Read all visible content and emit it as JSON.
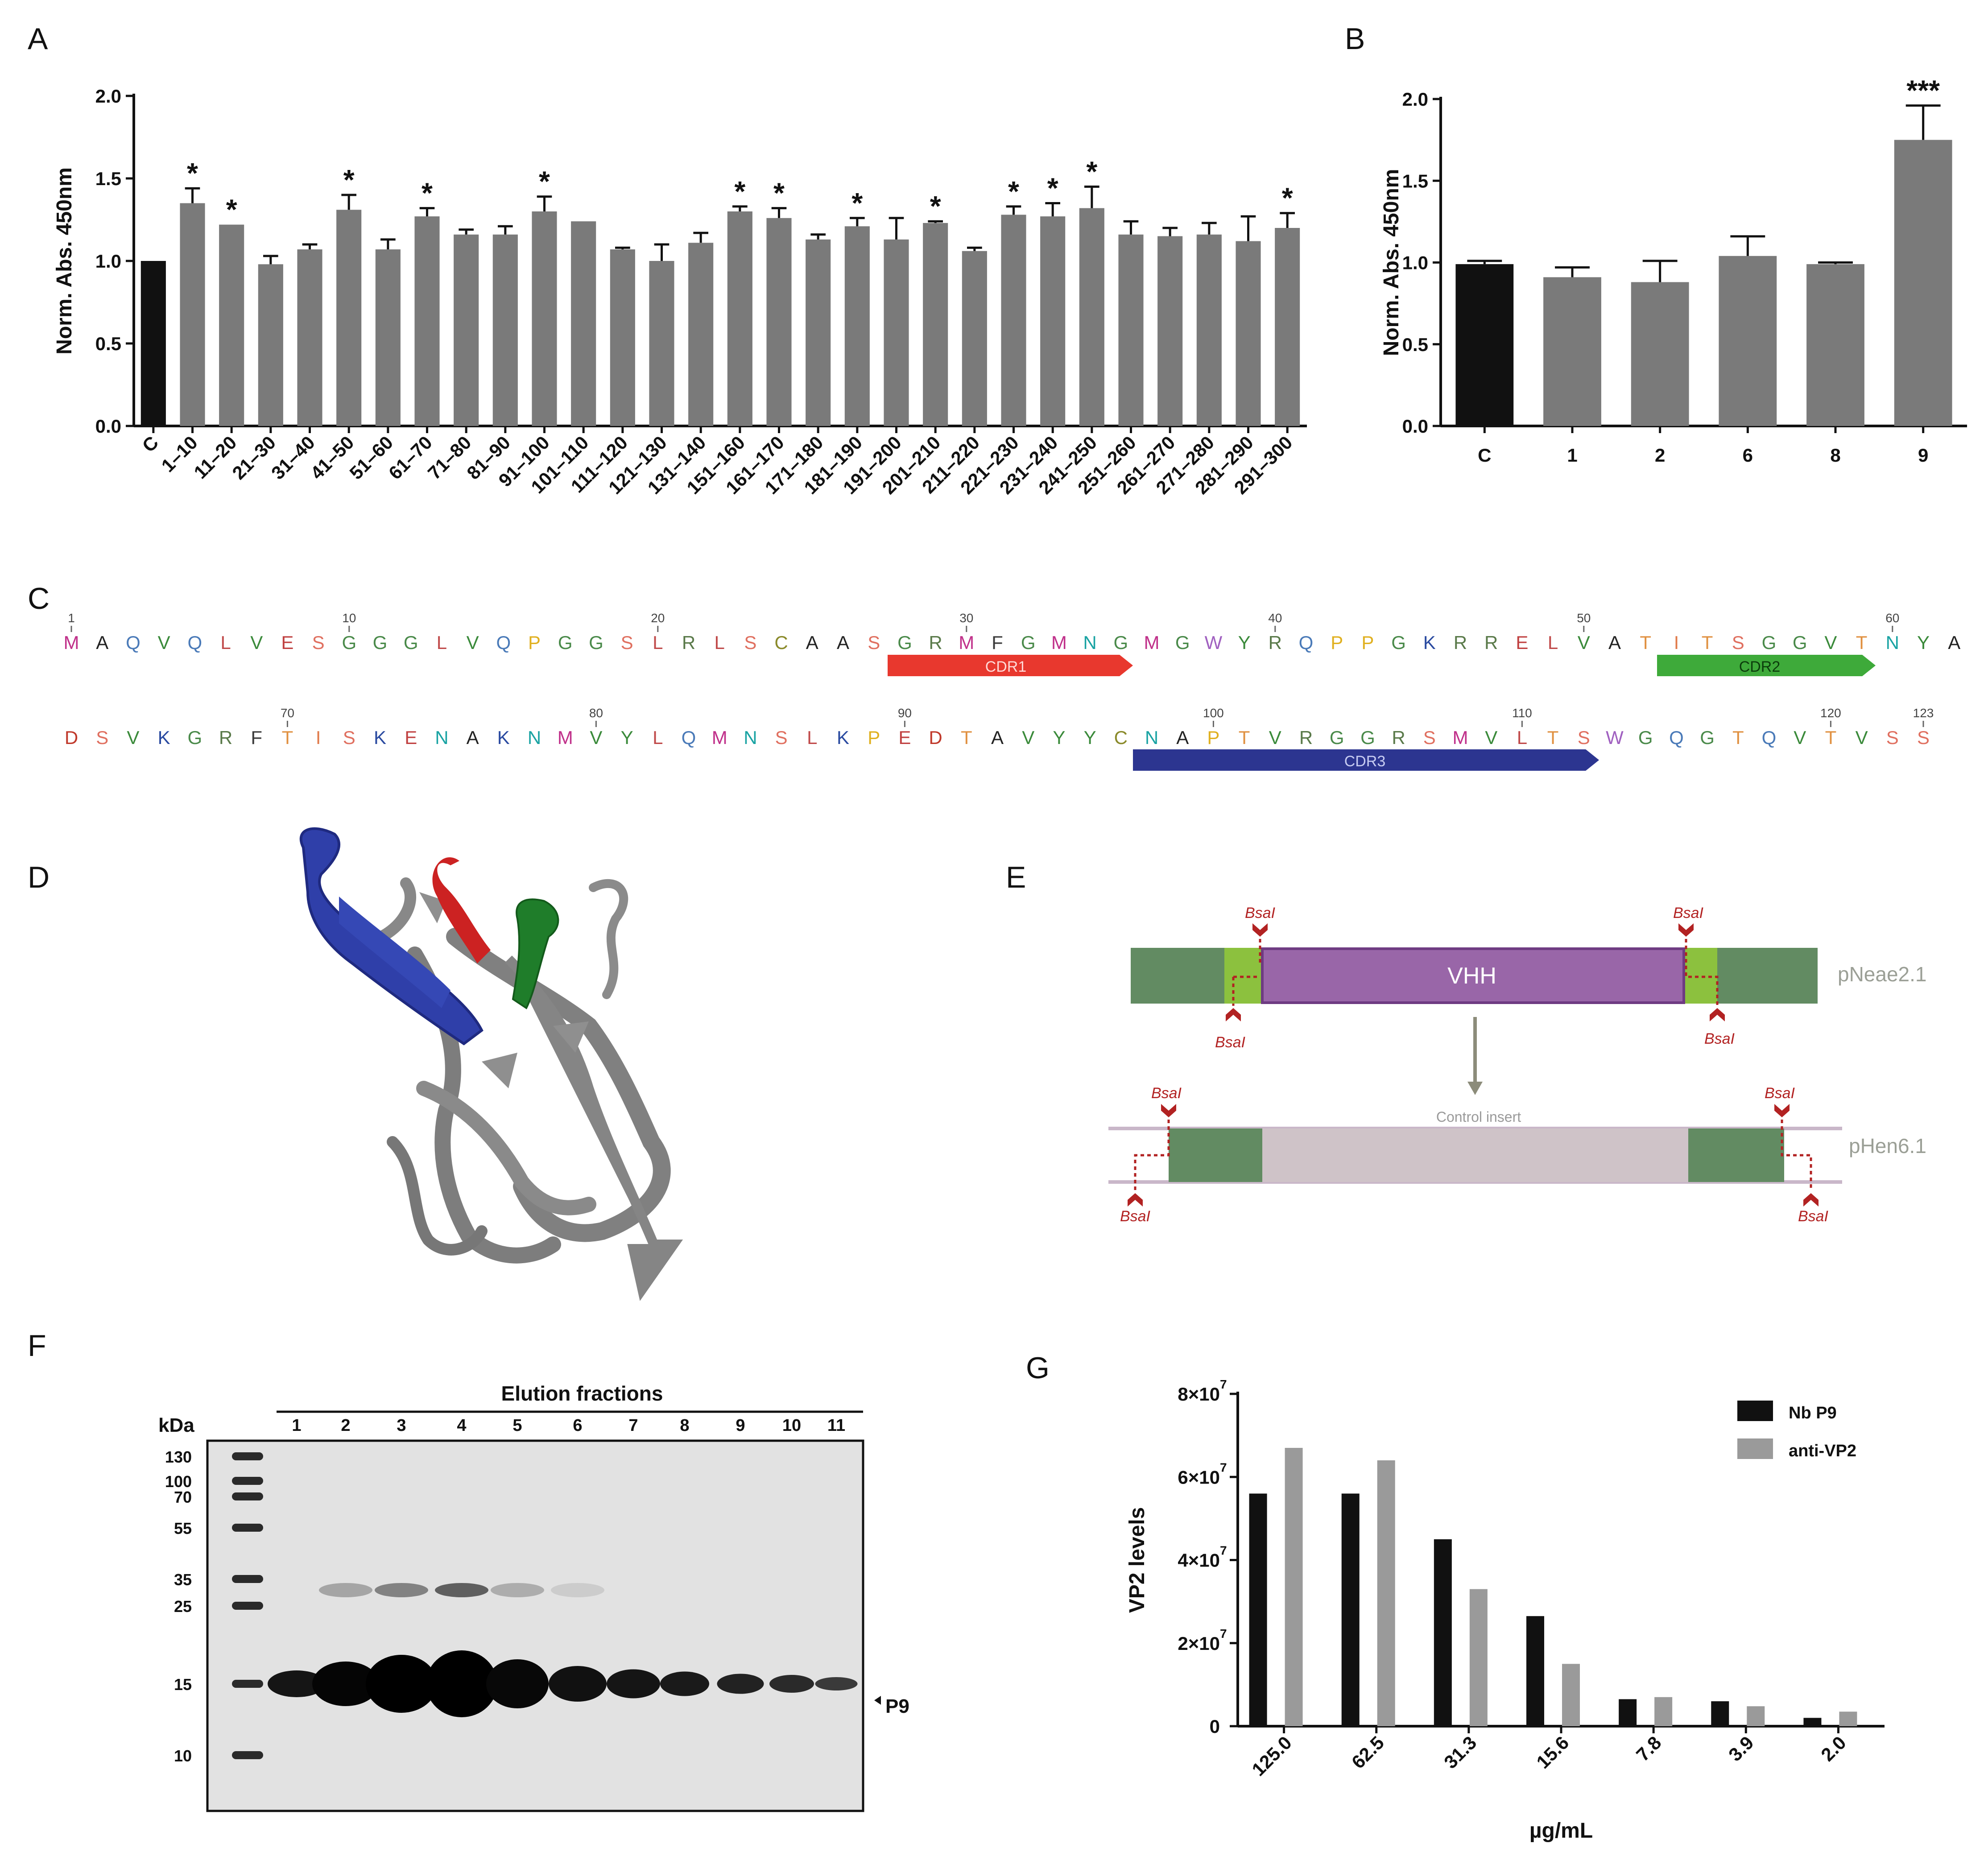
{
  "panels": {
    "A": "A",
    "B": "B",
    "C": "C",
    "D": "D",
    "E": "E",
    "F": "F",
    "G": "G"
  },
  "chart_data": [
    {
      "type": "bar",
      "panel": "A",
      "ylabel": "Norm. Abs. 450nm",
      "ylim": [
        0,
        2.0
      ],
      "yticks": [
        "0.0",
        "0.5",
        "1.0",
        "1.5",
        "2.0"
      ],
      "categories": [
        "C",
        "1–10",
        "11–20",
        "21–30",
        "31–40",
        "41–50",
        "51–60",
        "61–70",
        "71–80",
        "81–90",
        "91–100",
        "101–110",
        "111–120",
        "121–130",
        "131–140",
        "151–160",
        "161–170",
        "171–180",
        "181–190",
        "191–200",
        "201–210",
        "211–220",
        "221–230",
        "231–240",
        "241–250",
        "251–260",
        "261–270",
        "271–280",
        "281–290",
        "291–300"
      ],
      "values": [
        1.0,
        1.35,
        1.22,
        0.98,
        1.07,
        1.31,
        1.07,
        1.27,
        1.16,
        1.16,
        1.3,
        1.24,
        1.07,
        1.0,
        1.11,
        1.3,
        1.26,
        1.13,
        1.21,
        1.13,
        1.23,
        1.06,
        1.28,
        1.27,
        1.32,
        1.16,
        1.15,
        1.16,
        1.12,
        1.2
      ],
      "errors": [
        0,
        0.09,
        0,
        0.05,
        0.03,
        0.09,
        0.06,
        0.05,
        0.03,
        0.05,
        0.09,
        0,
        0.01,
        0.1,
        0.06,
        0.03,
        0.06,
        0.03,
        0.05,
        0.13,
        0.01,
        0.02,
        0.05,
        0.08,
        0.13,
        0.08,
        0.05,
        0.07,
        0.15,
        0.09
      ],
      "significance": [
        "",
        "*",
        "*",
        "",
        "",
        "*",
        "",
        "*",
        "",
        "",
        "*",
        "",
        "",
        "",
        "",
        "*",
        "*",
        "",
        "*",
        "",
        "*",
        "",
        "*",
        "*",
        "*",
        "",
        "",
        "",
        "",
        "*"
      ],
      "colors": {
        "control": "#111111",
        "sample": "#7a7a7a"
      }
    },
    {
      "type": "bar",
      "panel": "B",
      "ylabel": "Norm. Abs. 450nm",
      "ylim": [
        0,
        2.0
      ],
      "yticks": [
        "0.0",
        "0.5",
        "1.0",
        "1.5",
        "2.0"
      ],
      "categories": [
        "C",
        "1",
        "2",
        "6",
        "8",
        "9"
      ],
      "values": [
        0.99,
        0.91,
        0.88,
        1.04,
        0.99,
        1.75
      ],
      "errors": [
        0.02,
        0.06,
        0.13,
        0.12,
        0.01,
        0.21
      ],
      "significance": [
        "",
        "",
        "",
        "",
        "",
        "***"
      ],
      "colors": {
        "control": "#111111",
        "sample": "#7a7a7a"
      }
    },
    {
      "type": "bar",
      "panel": "G",
      "ylabel": "VP2 levels",
      "xlabel": "µg/mL",
      "ylim": [
        0,
        80000000
      ],
      "yticks": [
        "0",
        "2×10",
        "4×10",
        "6×10",
        "8×10"
      ],
      "ytick_exp": "7",
      "categories": [
        "125.0",
        "62.5",
        "31.3",
        "15.6",
        "7.8",
        "3.9",
        "2.0"
      ],
      "series": [
        {
          "name": "Nb P9",
          "color": "#111111",
          "values": [
            56000000,
            56000000,
            45000000,
            26500000,
            6500000,
            6000000,
            2000000
          ]
        },
        {
          "name": "anti-VP2",
          "color": "#9a9a9a",
          "values": [
            67000000,
            64000000,
            33000000,
            15000000,
            7000000,
            4800000,
            3500000
          ]
        }
      ]
    }
  ],
  "sequence": {
    "row1": [
      "M",
      "A",
      "Q",
      "V",
      "Q",
      "L",
      "V",
      "E",
      "S",
      "G",
      "G",
      "G",
      "L",
      "V",
      "Q",
      "P",
      "G",
      "G",
      "S",
      "L",
      "R",
      "L",
      "S",
      "C",
      "A",
      "A",
      "S",
      "G",
      "R",
      "M",
      "F",
      "G",
      "M",
      "N",
      "G",
      "M",
      "G",
      "W",
      "Y",
      "R",
      "Q",
      "P",
      "P",
      "G",
      "K",
      "R",
      "R",
      "E",
      "L",
      "V",
      "A",
      "T",
      "I",
      "T",
      "S",
      "G",
      "G",
      "V",
      "T",
      "N",
      "Y",
      "A"
    ],
    "row2": [
      "D",
      "S",
      "V",
      "K",
      "G",
      "R",
      "F",
      "T",
      "I",
      "S",
      "K",
      "E",
      "N",
      "A",
      "K",
      "N",
      "M",
      "V",
      "Y",
      "L",
      "Q",
      "M",
      "N",
      "S",
      "L",
      "K",
      "P",
      "E",
      "D",
      "T",
      "A",
      "V",
      "Y",
      "Y",
      "C",
      "N",
      "A",
      "P",
      "T",
      "V",
      "R",
      "G",
      "G",
      "R",
      "S",
      "M",
      "V",
      "L",
      "T",
      "S",
      "W",
      "G",
      "Q",
      "G",
      "T",
      "Q",
      "V",
      "T",
      "V",
      "S",
      "S"
    ],
    "row1_numbers": [
      {
        "n": "1",
        "i": 0
      },
      {
        "n": "10",
        "i": 9
      },
      {
        "n": "20",
        "i": 19
      },
      {
        "n": "30",
        "i": 29
      },
      {
        "n": "40",
        "i": 39
      },
      {
        "n": "50",
        "i": 49
      },
      {
        "n": "60",
        "i": 59
      }
    ],
    "row2_numbers": [
      {
        "n": "70",
        "i": 7
      },
      {
        "n": "80",
        "i": 17
      },
      {
        "n": "90",
        "i": 27
      },
      {
        "n": "100",
        "i": 37
      },
      {
        "n": "110",
        "i": 47
      },
      {
        "n": "120",
        "i": 57
      },
      {
        "n": "123",
        "i": 60
      }
    ],
    "cdrs": {
      "cdr1": "CDR1",
      "cdr2": "CDR2",
      "cdr3": "CDR3"
    }
  },
  "constructs": {
    "site": "BsaI",
    "vhh": "VHH",
    "vector1": "pNeae2.1",
    "vector2": "pHen6.1",
    "control": "Control insert"
  },
  "gel": {
    "title": "Elution fractions",
    "kda": "kDa",
    "lanes": [
      "1",
      "2",
      "3",
      "4",
      "5",
      "6",
      "7",
      "8",
      "9",
      "10",
      "11"
    ],
    "markers": [
      "130",
      "100",
      "70",
      "55",
      "35",
      "25",
      "15",
      "10"
    ],
    "band_label": "P9"
  },
  "legend": {
    "nb": "Nb P9",
    "anti": "anti-VP2"
  }
}
